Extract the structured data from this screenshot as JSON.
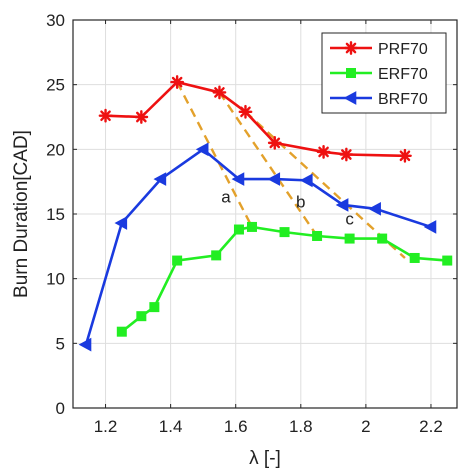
{
  "chart_data": {
    "type": "line",
    "xlabel": "λ [-]",
    "ylabel": "Burn Duration[CAD]",
    "xlim": [
      1.1,
      2.28
    ],
    "ylim": [
      0,
      30
    ],
    "xticks": [
      1.2,
      1.4,
      1.6,
      1.8,
      2,
      2.2
    ],
    "xtick_labels": [
      "1.2",
      "1.4",
      "1.6",
      "1.8",
      "2",
      "2.2"
    ],
    "yticks": [
      0,
      5,
      10,
      15,
      20,
      25,
      30
    ],
    "ytick_labels": [
      "0",
      "5",
      "10",
      "15",
      "20",
      "25",
      "30"
    ],
    "grid": true,
    "legend_position": "top-right",
    "series": [
      {
        "name": "PRF70",
        "color": "#ee1111",
        "marker": "asterisk",
        "x": [
          1.2,
          1.31,
          1.42,
          1.55,
          1.63,
          1.72,
          1.87,
          1.94,
          2.12
        ],
        "y": [
          22.6,
          22.5,
          25.2,
          24.4,
          22.9,
          20.5,
          19.8,
          19.6,
          19.5
        ]
      },
      {
        "name": "ERF70",
        "color": "#22ee22",
        "marker": "square",
        "x": [
          1.25,
          1.31,
          1.35,
          1.42,
          1.54,
          1.61,
          1.65,
          1.75,
          1.85,
          1.95,
          2.05,
          2.15,
          2.25
        ],
        "y": [
          5.9,
          7.1,
          7.8,
          11.4,
          11.8,
          13.8,
          14.0,
          13.6,
          13.3,
          13.1,
          13.1,
          11.6,
          11.4
        ]
      },
      {
        "name": "BRF70",
        "color": "#1a3adf",
        "marker": "triangle-left",
        "x": [
          1.14,
          1.25,
          1.37,
          1.5,
          1.61,
          1.72,
          1.82,
          1.93,
          2.03,
          2.2
        ],
        "y": [
          4.9,
          14.3,
          17.7,
          20.0,
          17.7,
          17.7,
          17.6,
          15.7,
          15.4,
          14.0
        ]
      }
    ],
    "guide_lines": {
      "color": "#e3a12b",
      "lines": [
        {
          "x": [
            1.42,
            1.65
          ],
          "y": [
            25.2,
            14.0
          ]
        },
        {
          "x": [
            1.55,
            1.85
          ],
          "y": [
            24.4,
            13.3
          ]
        },
        {
          "x": [
            1.63,
            2.12
          ],
          "y": [
            22.9,
            11.6
          ]
        }
      ]
    },
    "annotations": [
      {
        "text": "a",
        "x": 1.57,
        "y": 15.9
      },
      {
        "text": "b",
        "x": 1.8,
        "y": 15.5
      },
      {
        "text": "c",
        "x": 1.95,
        "y": 14.2
      }
    ]
  }
}
